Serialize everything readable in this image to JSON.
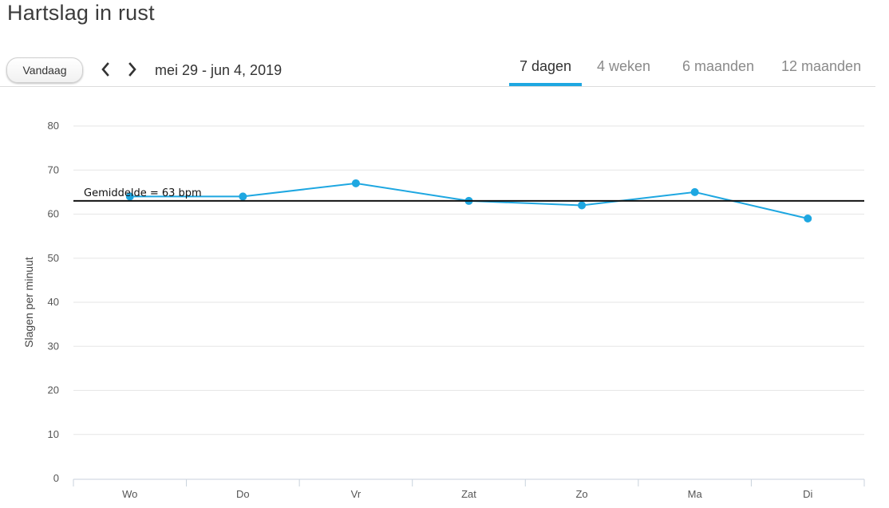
{
  "page": {
    "title": "Hartslag in rust"
  },
  "toolbar": {
    "today_label": "Vandaag",
    "prev_icon": "chevron-left-icon",
    "next_icon": "chevron-right-icon",
    "date_range": "mei 29 - jun 4, 2019"
  },
  "tabs": [
    {
      "label": "7 dagen",
      "active": true
    },
    {
      "label": "4 weken",
      "active": false
    },
    {
      "label": "6 maanden",
      "active": false
    },
    {
      "label": "12 maanden",
      "active": false
    }
  ],
  "colors": {
    "accent": "#1ea7e1",
    "line": "#1ea7e1",
    "average_line": "#111111",
    "grid": "#e6e6e6"
  },
  "chart_data": {
    "type": "line",
    "title": "Hartslag in rust",
    "ylabel": "Slagen per minuut",
    "xlabel": "",
    "categories": [
      "Wo",
      "Do",
      "Vr",
      "Zat",
      "Zo",
      "Ma",
      "Di"
    ],
    "series": [
      {
        "name": "Hartslag in rust",
        "values": [
          64,
          64,
          67,
          63,
          62,
          65,
          59
        ]
      }
    ],
    "ylim": [
      0,
      80
    ],
    "yticks": [
      0,
      10,
      20,
      30,
      40,
      50,
      60,
      70,
      80
    ],
    "grid": true,
    "average": {
      "value": 63,
      "label": "Gemiddelde = 63 bpm"
    }
  }
}
